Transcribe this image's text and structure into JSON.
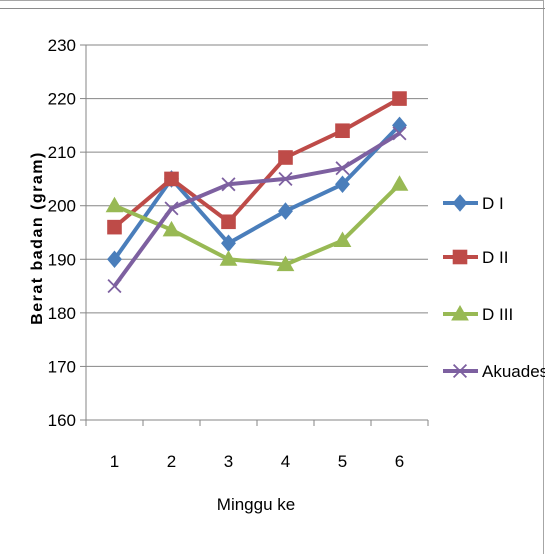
{
  "chart_data": {
    "type": "line",
    "title": "",
    "xlabel": "Minggu ke",
    "ylabel": "Berat badan (gram)",
    "x": [
      1,
      2,
      3,
      4,
      5,
      6
    ],
    "ylim": [
      160,
      230
    ],
    "yticks": [
      160,
      170,
      180,
      190,
      200,
      210,
      220,
      230
    ],
    "grid": true,
    "legend": "right",
    "series": [
      {
        "name": "D I",
        "color": "#4a7ebb",
        "marker": "diamond",
        "values": [
          190,
          205,
          193,
          199,
          204,
          215
        ]
      },
      {
        "name": "D II",
        "color": "#be4b48",
        "marker": "square",
        "values": [
          196,
          205,
          197,
          209,
          214,
          220
        ]
      },
      {
        "name": "D III",
        "color": "#98b954",
        "marker": "triangle",
        "values": [
          200,
          195.5,
          190,
          189,
          193.5,
          204
        ]
      },
      {
        "name": "Akuades",
        "color": "#7d60a0",
        "marker": "x",
        "values": [
          185,
          199.5,
          204,
          205,
          207,
          213.5
        ]
      }
    ]
  }
}
